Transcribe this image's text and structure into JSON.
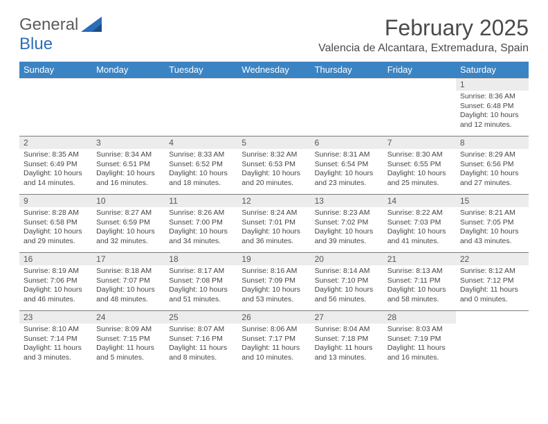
{
  "brand": {
    "name_a": "General",
    "name_b": "Blue"
  },
  "title": "February 2025",
  "location": "Valencia de Alcantara, Extremadura, Spain",
  "colors": {
    "header_bg": "#3b84c4",
    "header_text": "#ffffff",
    "daynum_bg": "#ececec",
    "border": "#7a7a7a",
    "page_bg": "#ffffff",
    "body_text": "#444444",
    "title_text": "#4a4a4a",
    "brand_gray": "#5b5b5b",
    "brand_blue": "#2b6db8"
  },
  "typography": {
    "title_fontsize": 32,
    "location_fontsize": 16,
    "dayheader_fontsize": 13,
    "daynum_fontsize": 12,
    "body_fontsize": 10.5
  },
  "day_headers": [
    "Sunday",
    "Monday",
    "Tuesday",
    "Wednesday",
    "Thursday",
    "Friday",
    "Saturday"
  ],
  "weeks": [
    [
      null,
      null,
      null,
      null,
      null,
      null,
      {
        "n": "1",
        "sunrise": "Sunrise: 8:36 AM",
        "sunset": "Sunset: 6:48 PM",
        "day1": "Daylight: 10 hours",
        "day2": "and 12 minutes."
      }
    ],
    [
      {
        "n": "2",
        "sunrise": "Sunrise: 8:35 AM",
        "sunset": "Sunset: 6:49 PM",
        "day1": "Daylight: 10 hours",
        "day2": "and 14 minutes."
      },
      {
        "n": "3",
        "sunrise": "Sunrise: 8:34 AM",
        "sunset": "Sunset: 6:51 PM",
        "day1": "Daylight: 10 hours",
        "day2": "and 16 minutes."
      },
      {
        "n": "4",
        "sunrise": "Sunrise: 8:33 AM",
        "sunset": "Sunset: 6:52 PM",
        "day1": "Daylight: 10 hours",
        "day2": "and 18 minutes."
      },
      {
        "n": "5",
        "sunrise": "Sunrise: 8:32 AM",
        "sunset": "Sunset: 6:53 PM",
        "day1": "Daylight: 10 hours",
        "day2": "and 20 minutes."
      },
      {
        "n": "6",
        "sunrise": "Sunrise: 8:31 AM",
        "sunset": "Sunset: 6:54 PM",
        "day1": "Daylight: 10 hours",
        "day2": "and 23 minutes."
      },
      {
        "n": "7",
        "sunrise": "Sunrise: 8:30 AM",
        "sunset": "Sunset: 6:55 PM",
        "day1": "Daylight: 10 hours",
        "day2": "and 25 minutes."
      },
      {
        "n": "8",
        "sunrise": "Sunrise: 8:29 AM",
        "sunset": "Sunset: 6:56 PM",
        "day1": "Daylight: 10 hours",
        "day2": "and 27 minutes."
      }
    ],
    [
      {
        "n": "9",
        "sunrise": "Sunrise: 8:28 AM",
        "sunset": "Sunset: 6:58 PM",
        "day1": "Daylight: 10 hours",
        "day2": "and 29 minutes."
      },
      {
        "n": "10",
        "sunrise": "Sunrise: 8:27 AM",
        "sunset": "Sunset: 6:59 PM",
        "day1": "Daylight: 10 hours",
        "day2": "and 32 minutes."
      },
      {
        "n": "11",
        "sunrise": "Sunrise: 8:26 AM",
        "sunset": "Sunset: 7:00 PM",
        "day1": "Daylight: 10 hours",
        "day2": "and 34 minutes."
      },
      {
        "n": "12",
        "sunrise": "Sunrise: 8:24 AM",
        "sunset": "Sunset: 7:01 PM",
        "day1": "Daylight: 10 hours",
        "day2": "and 36 minutes."
      },
      {
        "n": "13",
        "sunrise": "Sunrise: 8:23 AM",
        "sunset": "Sunset: 7:02 PM",
        "day1": "Daylight: 10 hours",
        "day2": "and 39 minutes."
      },
      {
        "n": "14",
        "sunrise": "Sunrise: 8:22 AM",
        "sunset": "Sunset: 7:03 PM",
        "day1": "Daylight: 10 hours",
        "day2": "and 41 minutes."
      },
      {
        "n": "15",
        "sunrise": "Sunrise: 8:21 AM",
        "sunset": "Sunset: 7:05 PM",
        "day1": "Daylight: 10 hours",
        "day2": "and 43 minutes."
      }
    ],
    [
      {
        "n": "16",
        "sunrise": "Sunrise: 8:19 AM",
        "sunset": "Sunset: 7:06 PM",
        "day1": "Daylight: 10 hours",
        "day2": "and 46 minutes."
      },
      {
        "n": "17",
        "sunrise": "Sunrise: 8:18 AM",
        "sunset": "Sunset: 7:07 PM",
        "day1": "Daylight: 10 hours",
        "day2": "and 48 minutes."
      },
      {
        "n": "18",
        "sunrise": "Sunrise: 8:17 AM",
        "sunset": "Sunset: 7:08 PM",
        "day1": "Daylight: 10 hours",
        "day2": "and 51 minutes."
      },
      {
        "n": "19",
        "sunrise": "Sunrise: 8:16 AM",
        "sunset": "Sunset: 7:09 PM",
        "day1": "Daylight: 10 hours",
        "day2": "and 53 minutes."
      },
      {
        "n": "20",
        "sunrise": "Sunrise: 8:14 AM",
        "sunset": "Sunset: 7:10 PM",
        "day1": "Daylight: 10 hours",
        "day2": "and 56 minutes."
      },
      {
        "n": "21",
        "sunrise": "Sunrise: 8:13 AM",
        "sunset": "Sunset: 7:11 PM",
        "day1": "Daylight: 10 hours",
        "day2": "and 58 minutes."
      },
      {
        "n": "22",
        "sunrise": "Sunrise: 8:12 AM",
        "sunset": "Sunset: 7:12 PM",
        "day1": "Daylight: 11 hours",
        "day2": "and 0 minutes."
      }
    ],
    [
      {
        "n": "23",
        "sunrise": "Sunrise: 8:10 AM",
        "sunset": "Sunset: 7:14 PM",
        "day1": "Daylight: 11 hours",
        "day2": "and 3 minutes."
      },
      {
        "n": "24",
        "sunrise": "Sunrise: 8:09 AM",
        "sunset": "Sunset: 7:15 PM",
        "day1": "Daylight: 11 hours",
        "day2": "and 5 minutes."
      },
      {
        "n": "25",
        "sunrise": "Sunrise: 8:07 AM",
        "sunset": "Sunset: 7:16 PM",
        "day1": "Daylight: 11 hours",
        "day2": "and 8 minutes."
      },
      {
        "n": "26",
        "sunrise": "Sunrise: 8:06 AM",
        "sunset": "Sunset: 7:17 PM",
        "day1": "Daylight: 11 hours",
        "day2": "and 10 minutes."
      },
      {
        "n": "27",
        "sunrise": "Sunrise: 8:04 AM",
        "sunset": "Sunset: 7:18 PM",
        "day1": "Daylight: 11 hours",
        "day2": "and 13 minutes."
      },
      {
        "n": "28",
        "sunrise": "Sunrise: 8:03 AM",
        "sunset": "Sunset: 7:19 PM",
        "day1": "Daylight: 11 hours",
        "day2": "and 16 minutes."
      },
      null
    ]
  ]
}
